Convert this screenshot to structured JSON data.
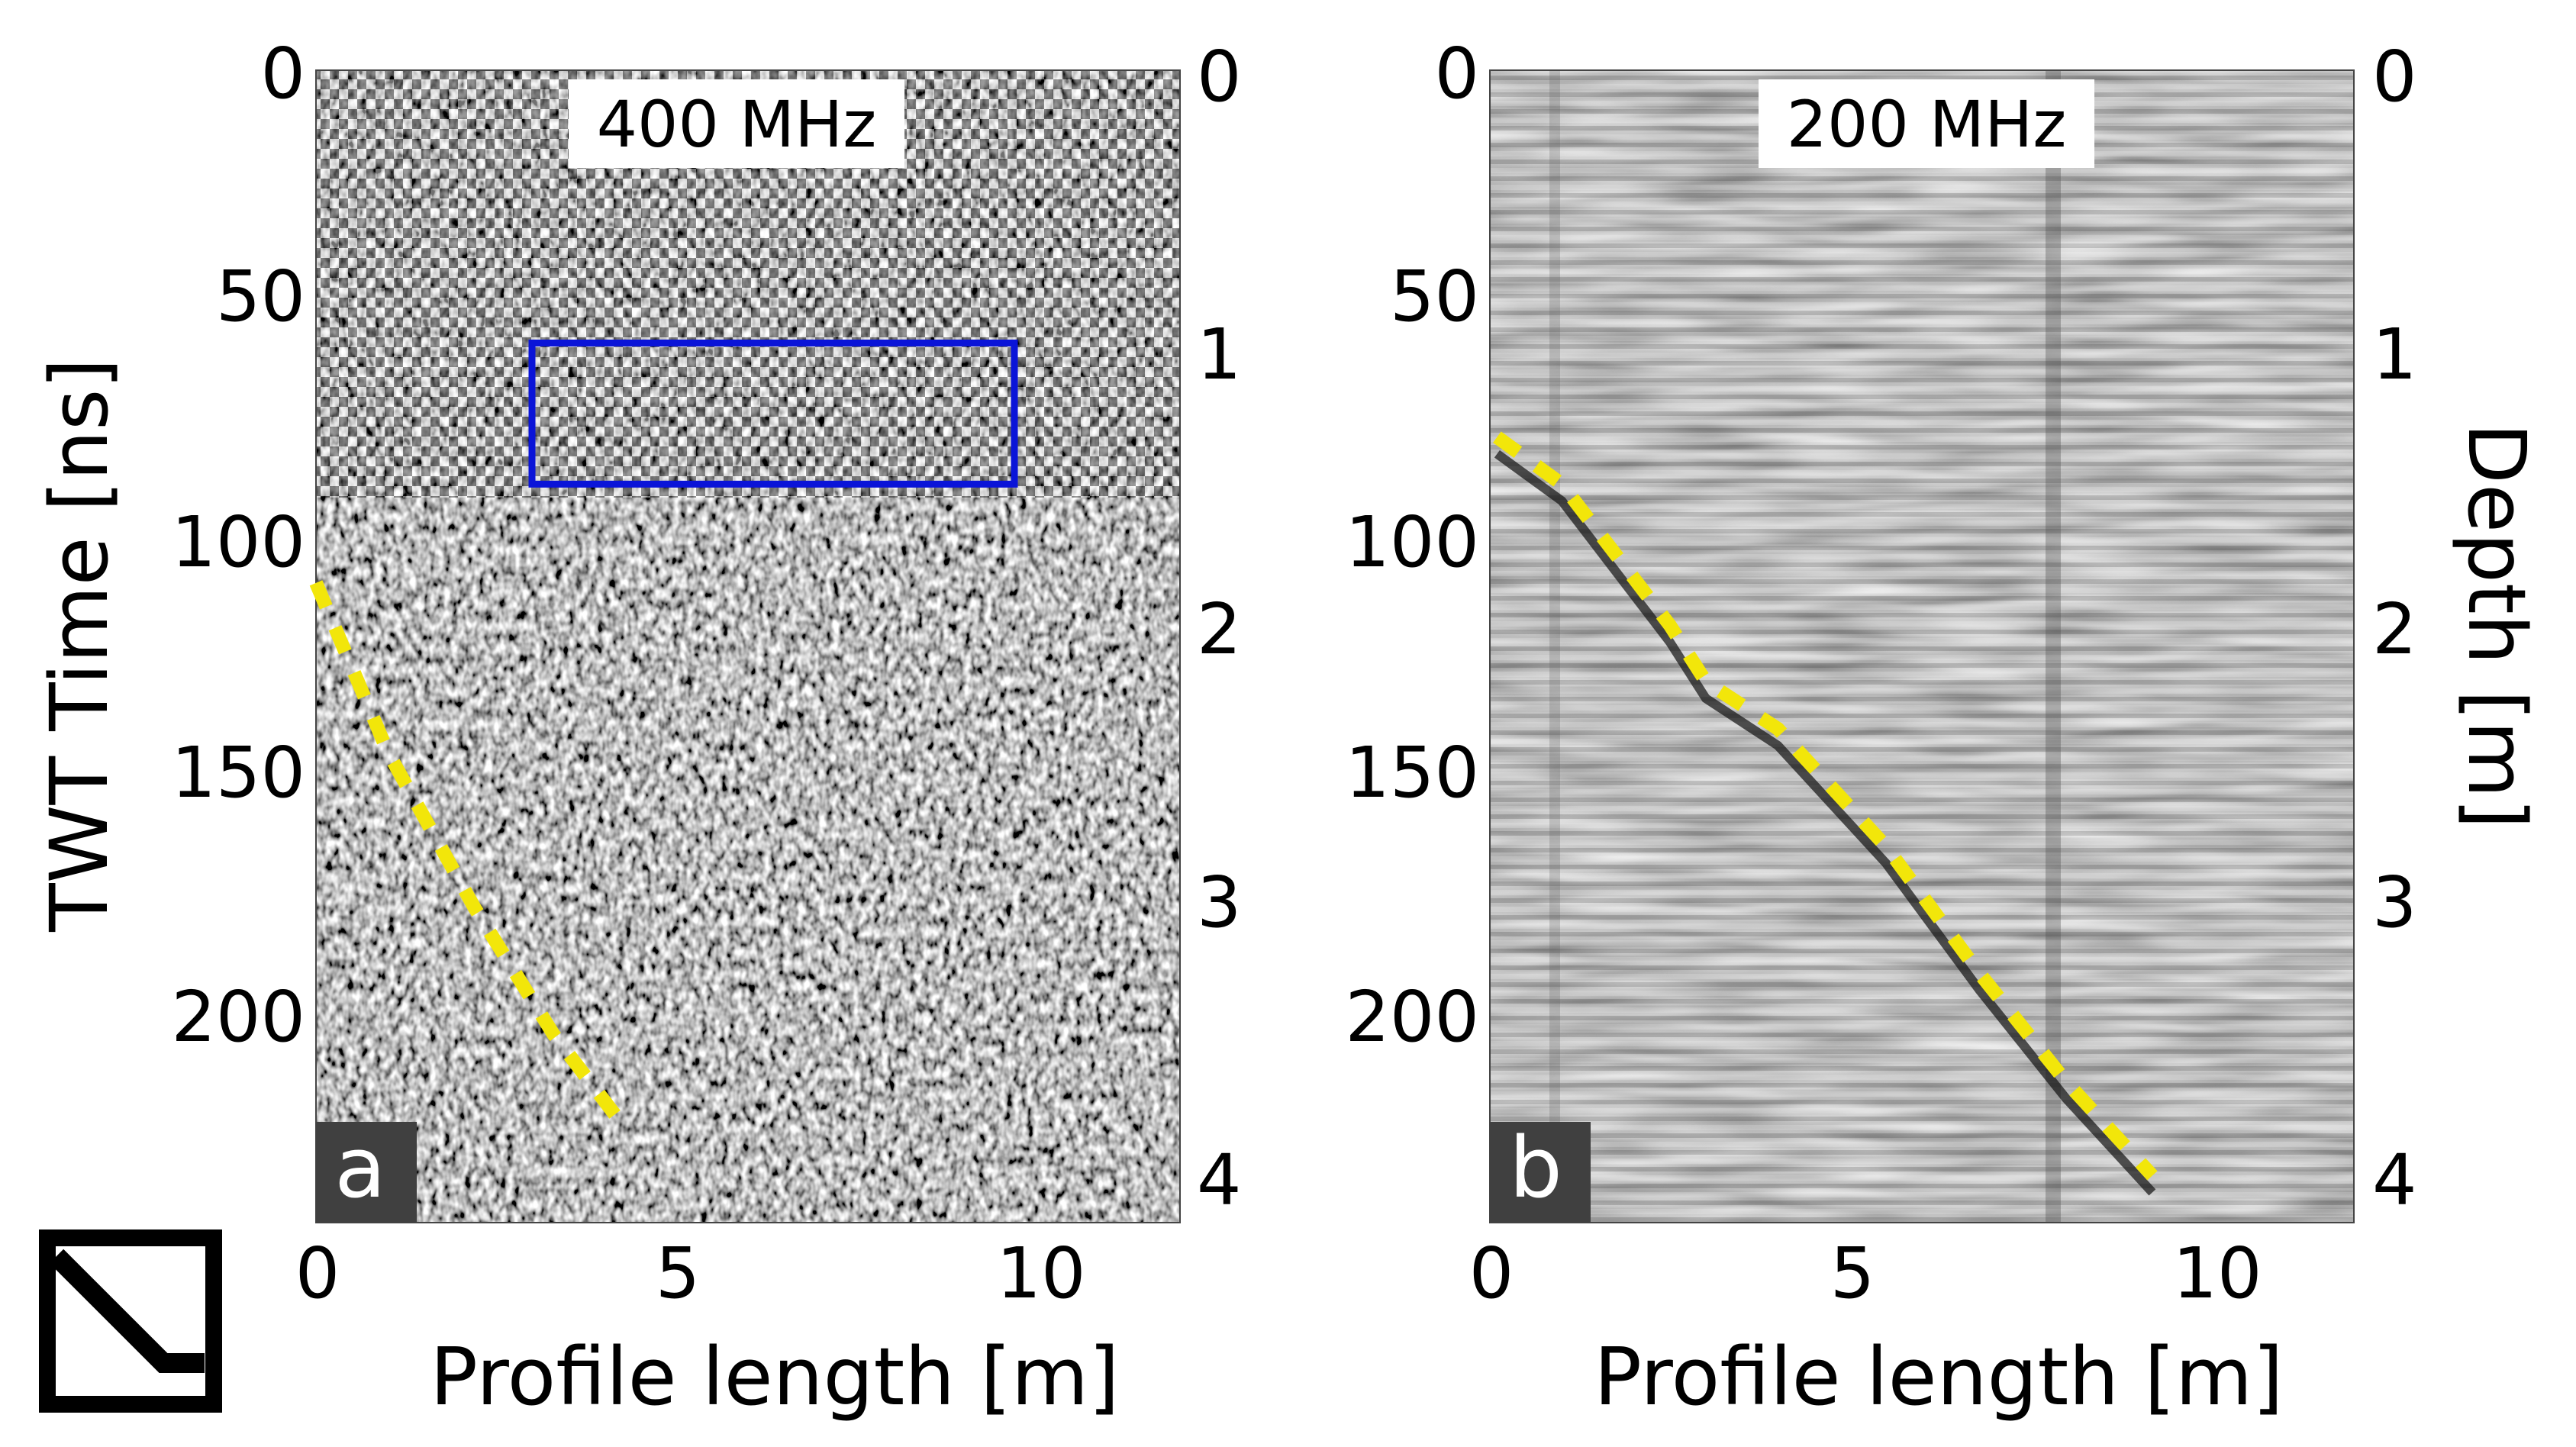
{
  "chart_data": [
    {
      "type": "heatmap",
      "panel_label": "a",
      "frequency_label": "400 MHz",
      "xlabel": "Profile length [m]",
      "ylabel": "TWT Time [ns]",
      "ylabel_right": "",
      "xlim": [
        0,
        12
      ],
      "ylim": [
        0,
        245
      ],
      "depth_lim": [
        0,
        4.3
      ],
      "x_ticks": [
        0,
        5,
        10
      ],
      "y_ticks": [
        0,
        50,
        100,
        150,
        200
      ],
      "depth_ticks": [
        0,
        1,
        2,
        3,
        4
      ],
      "reflector_trace": {
        "x": [
          0,
          1.0,
          2.2,
          3.3,
          4.3
        ],
        "y": [
          109,
          145,
          178,
          205,
          225
        ]
      },
      "highlight_box": {
        "x": [
          3.0,
          9.7
        ],
        "y": [
          58,
          88
        ]
      },
      "colors": {
        "trace": "#f2e60a",
        "box": "#0a14d8"
      }
    },
    {
      "type": "heatmap",
      "panel_label": "b",
      "frequency_label": "200 MHz",
      "xlabel": "Profile length [m]",
      "ylabel": "",
      "ylabel_right": "Depth [m]",
      "xlim": [
        0,
        12
      ],
      "ylim": [
        0,
        245
      ],
      "depth_lim": [
        0,
        4.3
      ],
      "x_ticks": [
        0,
        5,
        10
      ],
      "y_ticks": [
        0,
        50,
        100,
        150,
        200
      ],
      "depth_ticks": [
        0,
        1,
        2,
        3,
        4
      ],
      "reflector_trace": {
        "x": [
          0.1,
          1.0,
          2.5,
          3.0,
          4.0,
          5.5,
          6.8,
          8.0,
          9.2
        ],
        "y": [
          78,
          88,
          118,
          130,
          140,
          165,
          192,
          215,
          235
        ]
      },
      "highlight_box": null,
      "colors": {
        "trace": "#f2e60a",
        "box": "#0a14d8"
      }
    }
  ]
}
